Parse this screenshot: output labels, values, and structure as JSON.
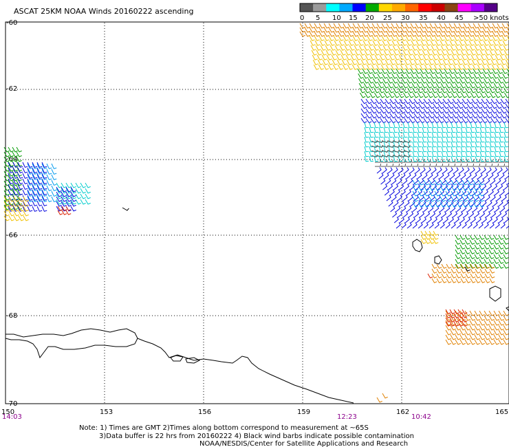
{
  "title": "ASCAT 25KM NOAA Winds 20160222 ascending",
  "legend": {
    "labels": [
      "0",
      "5",
      "10",
      "15",
      "20",
      "25",
      "30",
      "35",
      "40",
      "45",
      ">50 knots"
    ],
    "colors": [
      "#555555",
      "#9b9b9b",
      "#00ffff",
      "#00aaff",
      "#0000ff",
      "#00aa00",
      "#ffd700",
      "#ffaa00",
      "#ff6600",
      "#ff0000",
      "#cc0000",
      "#8b4513",
      "#ff00ff",
      "#aa00ff",
      "#550088"
    ]
  },
  "lat_labels": [
    "-60",
    "-62",
    "-64",
    "-66",
    "-68",
    "-70"
  ],
  "lon_labels": [
    "150",
    "153",
    "156",
    "159",
    "162",
    "165"
  ],
  "time_labels": [
    "14:03",
    "12:23",
    "10:42"
  ],
  "notes": [
    "Note: 1) Times are GMT 2)Times along bottom correspond to measurement at ~65S",
    "3)Data buffer is 22 hrs from 20160222 4) Black wind barbs indicate possible contamination",
    "NOAA/NESDIS/Center for Satellite Applications and Research"
  ]
}
